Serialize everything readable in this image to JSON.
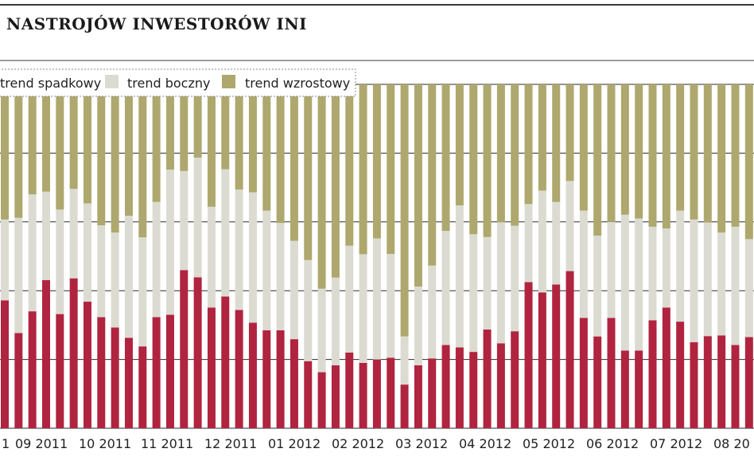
{
  "colors": {
    "down": "#b0243f",
    "side": "#dcdbd2",
    "up": "#aea86e",
    "grid": "#2a2a2a",
    "background": "#ffffff"
  },
  "chart_data": {
    "type": "bar",
    "stacked": true,
    "normalized_percent": true,
    "title": "NASTROJÓW INWESTORÓW INI",
    "xlabel": "",
    "ylabel": "",
    "ylim": [
      0,
      100
    ],
    "grid": "horizontal",
    "legend_position": "top-left",
    "legend": [
      "trend spadkowy",
      "trend boczny",
      "trend wzrostowy"
    ],
    "x_tick_labels": [
      "1",
      "09 2011",
      "10 2011",
      "11 2011",
      "12 2011",
      "01 2012",
      "02 2012",
      "03 2012",
      "04 2012",
      "05 2012",
      "06 2012",
      "07 2012",
      "08 20"
    ],
    "series": [
      {
        "name": "trend spadkowy",
        "values": [
          37.2,
          27.7,
          34.0,
          43.1,
          33.2,
          43.6,
          36.8,
          32.3,
          29.3,
          26.3,
          23.8,
          32.3,
          33.0,
          46.0,
          43.9,
          35.1,
          38.3,
          34.4,
          30.7,
          28.5,
          28.5,
          25.9,
          19.5,
          16.3,
          18.3,
          22.0,
          19.0,
          20.0,
          20.5,
          12.7,
          18.3,
          20.3,
          24.2,
          23.5,
          22.2,
          28.7,
          24.7,
          28.2,
          42.5,
          39.5,
          41.8,
          45.7,
          32.1,
          26.7,
          32.1,
          22.6,
          22.6,
          31.4,
          35.1,
          31.0,
          25.0,
          26.8,
          27.0,
          24.2,
          26.5,
          22.6
        ]
      },
      {
        "name": "trend boczny",
        "values": [
          23.5,
          33.5,
          34.0,
          25.7,
          30.4,
          26.0,
          28.6,
          26.7,
          27.6,
          35.5,
          31.7,
          33.5,
          42.2,
          28.8,
          34.8,
          29.3,
          37.0,
          35.0,
          37.9,
          34.8,
          31.2,
          28.6,
          29.4,
          24.3,
          25.5,
          31.1,
          31.6,
          35.2,
          30.2,
          14.0,
          22.9,
          27.0,
          33.2,
          41.3,
          34.2,
          26.9,
          35.2,
          30.7,
          22.7,
          29.6,
          24.0,
          26.2,
          31.2,
          29.3,
          27.9,
          39.5,
          38.4,
          27.2,
          23.0,
          32.3,
          35.7,
          33.0,
          29.9,
          34.4,
          28.5,
          35.7
        ]
      },
      {
        "name": "trend wzrostowy",
        "values": [
          39.3,
          38.8,
          32.0,
          31.2,
          36.4,
          30.4,
          34.6,
          41.0,
          43.1,
          38.2,
          44.5,
          34.2,
          24.8,
          25.2,
          21.3,
          35.6,
          24.7,
          30.6,
          31.4,
          36.7,
          40.3,
          45.5,
          51.1,
          59.4,
          56.2,
          46.9,
          49.4,
          44.8,
          49.3,
          73.3,
          58.8,
          52.7,
          42.6,
          35.2,
          43.6,
          44.4,
          40.1,
          41.1,
          34.8,
          30.9,
          34.2,
          28.1,
          36.7,
          44.0,
          40.0,
          37.9,
          39.0,
          41.4,
          41.9,
          36.7,
          39.3,
          40.2,
          43.1,
          41.4,
          45.0,
          41.7
        ]
      }
    ]
  }
}
